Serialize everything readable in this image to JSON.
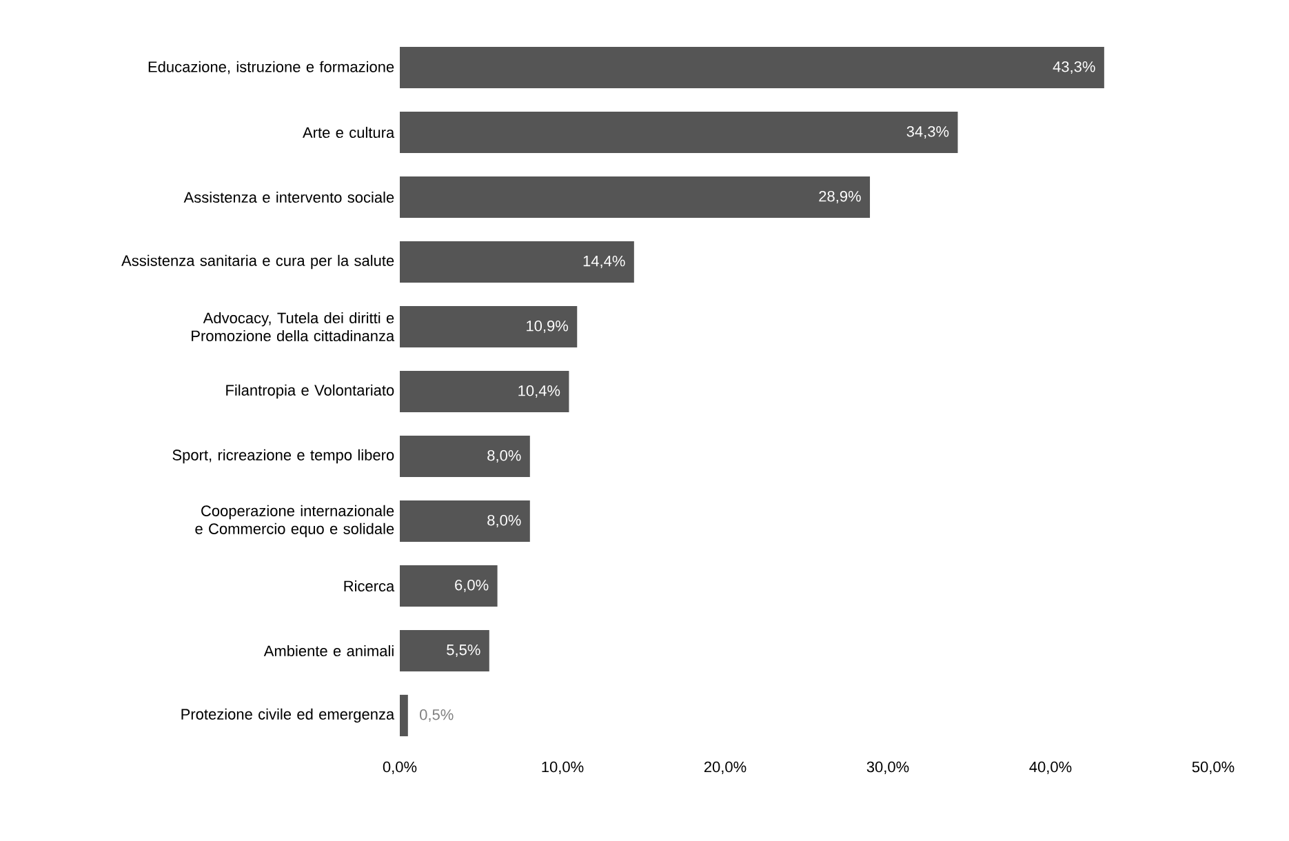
{
  "chart_data": {
    "type": "bar",
    "orientation": "horizontal",
    "categories": [
      "Educazione, istruzione e formazione",
      "Arte e cultura",
      "Assistenza e intervento sociale",
      "Assistenza sanitaria e cura per la salute",
      "Advocacy, Tutela dei diritti e Promozione della cittadinanza",
      "Filantropia e Volontariato",
      "Sport, ricreazione e tempo libero",
      "Cooperazione internazionale e Commercio equo e solidale",
      "Ricerca",
      "Ambiente e animali",
      "Protezione civile ed emergenza"
    ],
    "values": [
      43.3,
      34.3,
      28.9,
      14.4,
      10.9,
      10.4,
      8.0,
      8.0,
      6.0,
      5.5,
      0.5
    ],
    "value_labels": [
      "43,3%",
      "34,3%",
      "28,9%",
      "14,4%",
      "10,9%",
      "10,4%",
      "8,0%",
      "8,0%",
      "6,0%",
      "5,5%",
      "0,5%"
    ],
    "color": "#555555",
    "xlim": [
      0,
      50
    ],
    "xticks": [
      {
        "value": 0,
        "label": "0,0%"
      },
      {
        "value": 10,
        "label": "10,0%"
      },
      {
        "value": 20,
        "label": "20,0%"
      },
      {
        "value": 30,
        "label": "30,0%"
      },
      {
        "value": 40,
        "label": "40,0%"
      },
      {
        "value": 50,
        "label": "50,0%"
      }
    ]
  }
}
